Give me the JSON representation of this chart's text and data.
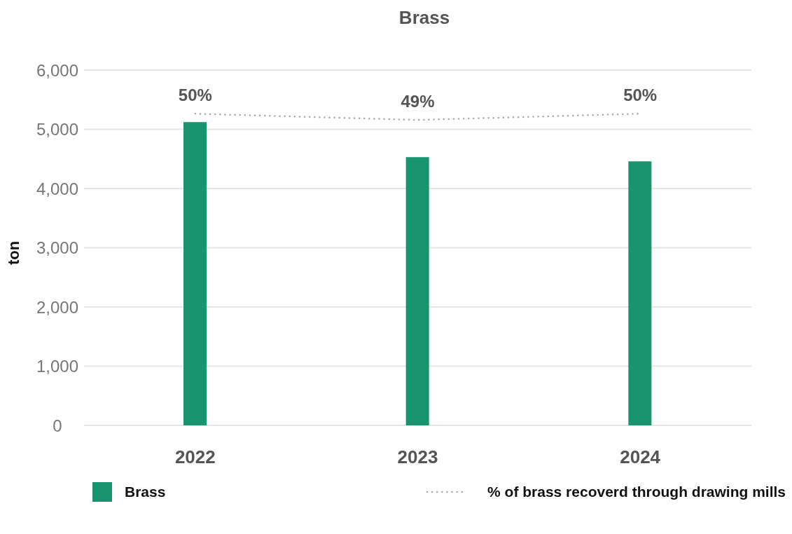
{
  "chart_data": {
    "type": "bar",
    "title": "Brass",
    "ylabel": "ton",
    "categories": [
      "2022",
      "2023",
      "2024"
    ],
    "series": [
      {
        "name": "Brass",
        "color": "#1a936f",
        "values": [
          5120,
          4530,
          4460
        ]
      },
      {
        "name": "% of brass recoverd through drawing mills",
        "type": "line",
        "axis": "y2",
        "color": "#aaaaaa",
        "line_style": "dotted",
        "values": [
          50,
          49,
          50
        ],
        "value_labels": [
          "50%",
          "49%",
          "50%"
        ]
      }
    ],
    "ylim": [
      0,
      6000
    ],
    "yticks": [
      {
        "value": 0,
        "label": "0"
      },
      {
        "value": 1000,
        "label": "1,000"
      },
      {
        "value": 2000,
        "label": "2,000"
      },
      {
        "value": 3000,
        "label": "3,000"
      },
      {
        "value": 4000,
        "label": "4,000"
      },
      {
        "value": 5000,
        "label": "5,000"
      },
      {
        "value": 6000,
        "label": "6,000"
      }
    ],
    "y2lim": [
      0,
      57
    ],
    "grid": "y",
    "legend": "bottom"
  }
}
